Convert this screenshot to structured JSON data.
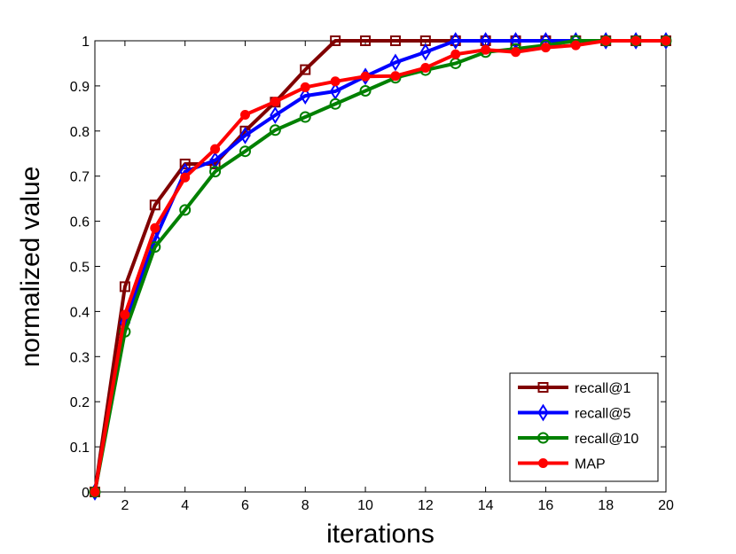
{
  "chart_data": {
    "type": "line",
    "title": "",
    "xlabel": "iterations",
    "ylabel": "normalized value",
    "xlim": [
      1,
      20
    ],
    "ylim": [
      0,
      1
    ],
    "xticks": [
      2,
      4,
      6,
      8,
      10,
      12,
      14,
      16,
      18,
      20
    ],
    "yticks": [
      0,
      0.1,
      0.2,
      0.3,
      0.4,
      0.5,
      0.6,
      0.7,
      0.8,
      0.9,
      1
    ],
    "ytick_labels": [
      "0",
      "0.1",
      "0.2",
      "0.3",
      "0.4",
      "0.5",
      "0.6",
      "0.7",
      "0.8",
      "0.9",
      "1"
    ],
    "grid": false,
    "legend_position": "bottom-right",
    "x": [
      1,
      2,
      3,
      4,
      5,
      6,
      7,
      8,
      9,
      10,
      11,
      12,
      13,
      14,
      15,
      16,
      17,
      18,
      19,
      20
    ],
    "series": [
      {
        "name": "recall@1",
        "color": "#800000",
        "marker": "square",
        "values": [
          0,
          0.455,
          0.636,
          0.727,
          0.727,
          0.8,
          0.864,
          0.936,
          1,
          1,
          1,
          1,
          1,
          1,
          1,
          1,
          1,
          1,
          1,
          1
        ]
      },
      {
        "name": "recall@5",
        "color": "#0000ff",
        "marker": "diamond",
        "values": [
          0,
          0.375,
          0.56,
          0.71,
          0.735,
          0.79,
          0.835,
          0.878,
          0.888,
          0.921,
          0.952,
          0.975,
          1,
          1,
          1,
          1,
          1,
          1,
          1,
          1
        ]
      },
      {
        "name": "recall@10",
        "color": "#008000",
        "marker": "circle-open",
        "values": [
          0,
          0.355,
          0.543,
          0.625,
          0.71,
          0.755,
          0.802,
          0.831,
          0.86,
          0.889,
          0.918,
          0.935,
          0.95,
          0.975,
          0.982,
          0.99,
          1,
          1,
          1,
          1
        ]
      },
      {
        "name": "MAP",
        "color": "#ff0000",
        "marker": "circle-filled",
        "values": [
          0,
          0.393,
          0.585,
          0.697,
          0.76,
          0.836,
          0.865,
          0.897,
          0.91,
          0.921,
          0.922,
          0.94,
          0.97,
          0.98,
          0.975,
          0.985,
          0.99,
          1,
          1,
          1
        ]
      }
    ]
  }
}
